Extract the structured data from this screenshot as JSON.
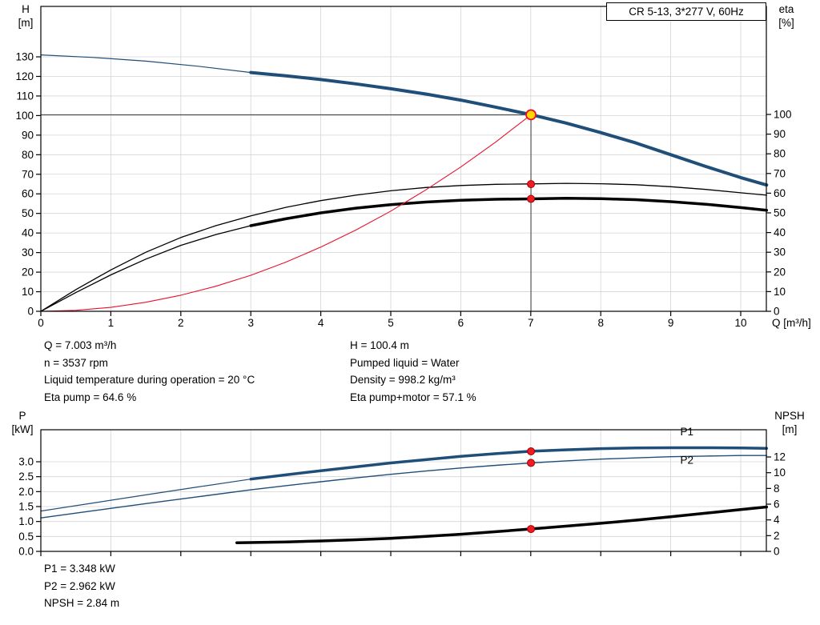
{
  "title_box": "CR 5-13, 3*277 V, 60Hz",
  "info_top": {
    "left": [
      "Q = 7.003 m³/h",
      "n = 3537 rpm",
      "Liquid temperature during operation = 20 °C",
      "Eta pump = 64.6 %"
    ],
    "right": [
      "H = 100.4 m",
      "Pumped liquid = Water",
      "Density = 998.2 kg/m³",
      "Eta pump+motor = 57.1 %"
    ]
  },
  "info_bottom": [
    "P1 = 3.348 kW",
    "P2 = 2.962 kW",
    "NPSH = 2.84 m"
  ],
  "colors": {
    "curve_blue": "#1f4e79",
    "curve_black": "#000000",
    "curve_red": "#e8112d",
    "duty_yellow": "#ffd800",
    "grid": "#d4d4d4"
  },
  "chart_data": [
    {
      "type": "line",
      "title": "CR 5-13, 3*277 V, 60Hz",
      "x_axis": {
        "label": "Q [m³/h]",
        "min": 0,
        "max": 10.37,
        "tick_values": [
          0,
          1,
          2,
          3,
          4,
          5,
          6,
          7,
          8,
          9,
          10
        ],
        "tick_labels": [
          "0",
          "1",
          "2",
          "3",
          "4",
          "5",
          "6",
          "7",
          "8",
          "9",
          "10"
        ],
        "show_tick_labels": true
      },
      "left_axis": {
        "label_lines": [
          "H",
          "[m]"
        ],
        "tick_values": [
          0,
          10,
          20,
          30,
          40,
          50,
          60,
          70,
          80,
          90,
          100,
          110,
          120,
          130
        ],
        "tick_labels": [
          "0",
          "10",
          "20",
          "30",
          "40",
          "50",
          "60",
          "70",
          "80",
          "90",
          "100",
          "110",
          "120",
          "130"
        ]
      },
      "right_axis": {
        "label_lines": [
          "eta",
          "[%]"
        ],
        "tick_values": [
          0,
          10,
          20,
          30,
          40,
          50,
          60,
          70,
          80,
          90,
          100
        ],
        "tick_labels": [
          "0",
          "10",
          "20",
          "30",
          "40",
          "50",
          "60",
          "70",
          "80",
          "90",
          "100"
        ]
      },
      "grid": true,
      "series": [
        {
          "name": "head-curve-thin",
          "axis": "left",
          "color": "#1f4e79",
          "width": 1.2,
          "points": [
            [
              0,
              131
            ],
            [
              0.75,
              129.7
            ],
            [
              1.5,
              127.8
            ],
            [
              2.25,
              125.2
            ],
            [
              3,
              122
            ]
          ]
        },
        {
          "name": "head-curve",
          "axis": "left",
          "color": "#1f4e79",
          "width": 4,
          "points": [
            [
              3,
              122
            ],
            [
              3.5,
              120.3
            ],
            [
              4,
              118.4
            ],
            [
              4.5,
              116.2
            ],
            [
              5,
              113.7
            ],
            [
              5.5,
              111
            ],
            [
              6,
              107.9
            ],
            [
              6.5,
              104.3
            ],
            [
              7,
              100.5
            ],
            [
              7.5,
              96.2
            ],
            [
              8,
              91.3
            ],
            [
              8.5,
              86
            ],
            [
              9,
              80
            ],
            [
              9.5,
              74
            ],
            [
              10,
              68.3
            ],
            [
              10.37,
              64.5
            ]
          ]
        },
        {
          "name": "eta-pump-curve",
          "axis": "right",
          "color": "#000000",
          "width": 1.3,
          "points": [
            [
              0,
              0
            ],
            [
              0.5,
              11
            ],
            [
              1,
              21
            ],
            [
              1.5,
              30
            ],
            [
              2,
              37.5
            ],
            [
              2.5,
              43.5
            ],
            [
              3,
              48.5
            ],
            [
              3.5,
              52.8
            ],
            [
              4,
              56.2
            ],
            [
              4.5,
              59
            ],
            [
              5,
              61.2
            ],
            [
              5.5,
              62.9
            ],
            [
              6,
              63.9
            ],
            [
              6.5,
              64.5
            ],
            [
              7,
              64.7
            ],
            [
              7.5,
              65
            ],
            [
              8,
              64.8
            ],
            [
              8.5,
              64.3
            ],
            [
              9,
              63.3
            ],
            [
              9.5,
              61.9
            ],
            [
              10,
              60.2
            ],
            [
              10.37,
              59
            ]
          ]
        },
        {
          "name": "eta-pump-motor-curve-thin",
          "axis": "right",
          "color": "#000000",
          "width": 1.3,
          "points": [
            [
              0,
              0
            ],
            [
              0.5,
              9.5
            ],
            [
              1,
              18.5
            ],
            [
              1.5,
              26.5
            ],
            [
              2,
              33.5
            ],
            [
              2.5,
              39
            ],
            [
              3,
              43.5
            ]
          ]
        },
        {
          "name": "eta-pump-motor-curve",
          "axis": "right",
          "color": "#000000",
          "width": 3.5,
          "points": [
            [
              3,
              43.5
            ],
            [
              3.5,
              47
            ],
            [
              4,
              50
            ],
            [
              4.5,
              52.4
            ],
            [
              5,
              54.2
            ],
            [
              5.5,
              55.5
            ],
            [
              6,
              56.4
            ],
            [
              6.5,
              56.9
            ],
            [
              7,
              57.1
            ],
            [
              7.5,
              57.4
            ],
            [
              8,
              57.2
            ],
            [
              8.5,
              56.7
            ],
            [
              9,
              55.7
            ],
            [
              9.5,
              54.4
            ],
            [
              10,
              52.7
            ],
            [
              10.37,
              51.3
            ]
          ]
        },
        {
          "name": "system-curve",
          "axis": "left",
          "color": "#e8112d",
          "width": 1.1,
          "points": [
            [
              0,
              0
            ],
            [
              0.5,
              0.5
            ],
            [
              1,
              2
            ],
            [
              1.5,
              4.6
            ],
            [
              2,
              8.2
            ],
            [
              2.5,
              12.8
            ],
            [
              3,
              18.4
            ],
            [
              3.5,
              25.1
            ],
            [
              4,
              32.8
            ],
            [
              4.5,
              41.5
            ],
            [
              5,
              51.2
            ],
            [
              5.5,
              62
            ],
            [
              6,
              73.7
            ],
            [
              6.5,
              86.5
            ],
            [
              7.003,
              100.4
            ]
          ]
        }
      ],
      "duty_lines": [
        {
          "name": "duty-vline",
          "axis": "left",
          "from": [
            7.003,
            0
          ],
          "to": [
            7.003,
            100.4
          ],
          "color": "#3a3a3a",
          "width": 1
        },
        {
          "name": "duty-hline",
          "axis": "left",
          "from": [
            0,
            100.4
          ],
          "to": [
            7.003,
            100.4
          ],
          "color": "#3a3a3a",
          "width": 1
        }
      ],
      "markers": [
        {
          "name": "duty-point",
          "axis": "left",
          "x": 7.003,
          "value": 100.4,
          "r": 6,
          "fill": "#ffd800",
          "stroke": "#e8112d",
          "stroke_width": 1.8
        },
        {
          "name": "eta-pump-point",
          "axis": "right",
          "x": 7.003,
          "value": 64.6,
          "r": 4.5,
          "fill": "#ee1c25",
          "stroke": "#a00000",
          "stroke_width": 1
        },
        {
          "name": "eta-pump-motor-point",
          "axis": "right",
          "x": 7.003,
          "value": 57.1,
          "r": 4.5,
          "fill": "#ee1c25",
          "stroke": "#a00000",
          "stroke_width": 1
        }
      ],
      "annotations": []
    },
    {
      "type": "line",
      "title": "",
      "x_axis": {
        "label": "",
        "min": 0,
        "max": 10.37,
        "tick_values": [
          0,
          1,
          2,
          3,
          4,
          5,
          6,
          7,
          8,
          9,
          10
        ],
        "tick_labels": [],
        "show_tick_labels": false
      },
      "left_axis": {
        "label_lines": [
          "P",
          "[kW]"
        ],
        "tick_values": [
          0,
          0.5,
          1,
          1.5,
          2,
          2.5,
          3
        ],
        "tick_labels": [
          "0.0",
          "0.5",
          "1.0",
          "1.5",
          "2.0",
          "2.5",
          "3.0"
        ]
      },
      "right_axis": {
        "label_lines": [
          "NPSH",
          "[m]"
        ],
        "tick_values": [
          0,
          2,
          4,
          6,
          8,
          10,
          12
        ],
        "tick_labels": [
          "0",
          "2",
          "4",
          "6",
          "8",
          "10",
          "12"
        ]
      },
      "grid": true,
      "series": [
        {
          "name": "p1-curve-thin",
          "axis": "left",
          "color": "#1f4e79",
          "width": 1.2,
          "points": [
            [
              0,
              1.35
            ],
            [
              0.75,
              1.62
            ],
            [
              1.5,
              1.89
            ],
            [
              2.25,
              2.16
            ],
            [
              3,
              2.42
            ]
          ]
        },
        {
          "name": "p1-curve",
          "axis": "left",
          "color": "#1f4e79",
          "width": 3.5,
          "points": [
            [
              3,
              2.42
            ],
            [
              3.5,
              2.56
            ],
            [
              4,
              2.7
            ],
            [
              4.5,
              2.83
            ],
            [
              5,
              2.96
            ],
            [
              5.5,
              3.07
            ],
            [
              6,
              3.18
            ],
            [
              6.5,
              3.27
            ],
            [
              7,
              3.35
            ],
            [
              7.5,
              3.4
            ],
            [
              8,
              3.44
            ],
            [
              8.5,
              3.46
            ],
            [
              9,
              3.47
            ],
            [
              9.5,
              3.47
            ],
            [
              10,
              3.46
            ],
            [
              10.37,
              3.45
            ]
          ]
        },
        {
          "name": "p2-curve",
          "axis": "left",
          "color": "#1f4e79",
          "width": 1.4,
          "points": [
            [
              0,
              1.12
            ],
            [
              0.75,
              1.36
            ],
            [
              1.5,
              1.6
            ],
            [
              2.25,
              1.83
            ],
            [
              3,
              2.06
            ],
            [
              3.5,
              2.2
            ],
            [
              4,
              2.33
            ],
            [
              4.5,
              2.46
            ],
            [
              5,
              2.58
            ],
            [
              5.5,
              2.69
            ],
            [
              6,
              2.79
            ],
            [
              6.5,
              2.88
            ],
            [
              7,
              2.96
            ],
            [
              7.5,
              3.03
            ],
            [
              8,
              3.09
            ],
            [
              8.5,
              3.13
            ],
            [
              9,
              3.17
            ],
            [
              9.5,
              3.19
            ],
            [
              10,
              3.21
            ],
            [
              10.37,
              3.21
            ]
          ]
        },
        {
          "name": "npsh-curve",
          "axis": "right",
          "color": "#000000",
          "width": 3.5,
          "points": [
            [
              2.8,
              1.1
            ],
            [
              3.5,
              1.2
            ],
            [
              4,
              1.32
            ],
            [
              4.5,
              1.47
            ],
            [
              5,
              1.66
            ],
            [
              5.5,
              1.9
            ],
            [
              6,
              2.18
            ],
            [
              6.5,
              2.5
            ],
            [
              7,
              2.85
            ],
            [
              7.5,
              3.2
            ],
            [
              8,
              3.57
            ],
            [
              8.5,
              3.97
            ],
            [
              9,
              4.4
            ],
            [
              9.5,
              4.85
            ],
            [
              10,
              5.32
            ],
            [
              10.37,
              5.65
            ]
          ]
        }
      ],
      "duty_lines": [],
      "markers": [
        {
          "name": "p1-point",
          "axis": "left",
          "x": 7.003,
          "value": 3.348,
          "r": 4.5,
          "fill": "#ee1c25",
          "stroke": "#a00000",
          "stroke_width": 1
        },
        {
          "name": "p2-point",
          "axis": "left",
          "x": 7.003,
          "value": 2.962,
          "r": 4.5,
          "fill": "#ee1c25",
          "stroke": "#a00000",
          "stroke_width": 1
        },
        {
          "name": "npsh-point",
          "axis": "right",
          "x": 7.003,
          "value": 2.84,
          "r": 4.5,
          "fill": "#ee1c25",
          "stroke": "#a00000",
          "stroke_width": 1
        }
      ],
      "annotations": [
        {
          "name": "p1-label",
          "text": "P1",
          "axis": "left",
          "x": 9.23,
          "value": 4.0,
          "color": "#1f4e79"
        },
        {
          "name": "p2-label",
          "text": "P2",
          "axis": "left",
          "x": 9.23,
          "value": 3.05,
          "color": "#1f4e79"
        }
      ]
    }
  ]
}
